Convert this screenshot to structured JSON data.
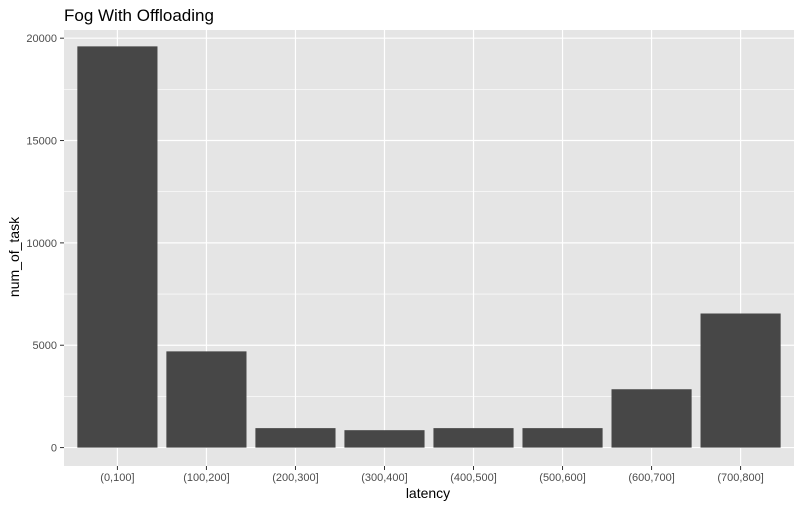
{
  "chart_data": {
    "type": "bar",
    "title": "Fog With Offloading",
    "xlabel": "latency",
    "ylabel": "num_of_task",
    "categories": [
      "(0,100]",
      "(100,200]",
      "(200,300]",
      "(300,400]",
      "(400,500]",
      "(500,600]",
      "(600,700]",
      "(700,800]"
    ],
    "values": [
      19600,
      4700,
      950,
      850,
      950,
      950,
      2850,
      6550
    ],
    "ylim": [
      -900,
      20400
    ],
    "yticks": [
      0,
      5000,
      10000,
      15000,
      20000
    ],
    "ytick_labels": [
      "0",
      "5000",
      "10000",
      "15000",
      "20000"
    ],
    "grid": true,
    "colors": {
      "panel_background": "#e5e5e5",
      "grid_major": "#ffffff",
      "bar_fill": "#474747",
      "tick_text": "#4d4d4d"
    }
  }
}
